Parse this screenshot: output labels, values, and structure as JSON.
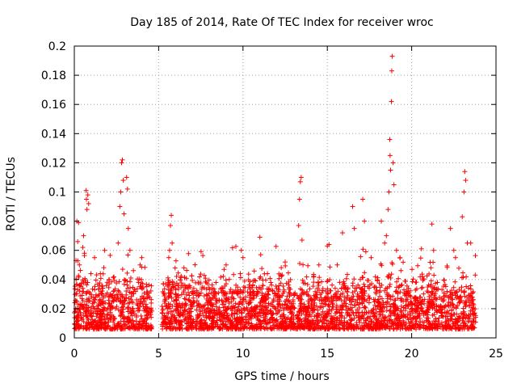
{
  "chart_data": {
    "type": "scatter",
    "title": "Day 185 of 2014, Rate Of TEC Index for receiver wroc",
    "xlabel": "GPS time / hours",
    "ylabel": "ROTI / TECUs",
    "xlim": [
      0,
      25
    ],
    "ylim": [
      0,
      0.2
    ],
    "grid": true,
    "marker": "+",
    "color": "#ff0000",
    "x_ticks": [
      0,
      5,
      10,
      15,
      20,
      25
    ],
    "x_tick_labels": [
      "0",
      "5",
      "10",
      "15",
      "20",
      "25"
    ],
    "y_ticks": [
      0,
      0.02,
      0.04,
      0.06,
      0.08,
      0.1,
      0.12,
      0.14,
      0.16,
      0.18,
      0.2
    ],
    "y_tick_labels": [
      "0",
      "0.02",
      "0.04",
      "0.06",
      "0.08",
      "0.1",
      "0.12",
      "0.14",
      "0.16",
      "0.18",
      "0.2"
    ],
    "data_gap_hours": [
      4.6,
      5.2
    ],
    "series": [
      {
        "name": "ROTI",
        "points": [
          [
            0.1,
            0.053
          ],
          [
            0.15,
            0.08
          ],
          [
            0.2,
            0.066
          ],
          [
            0.25,
            0.079
          ],
          [
            0.3,
            0.05
          ],
          [
            0.5,
            0.062
          ],
          [
            0.55,
            0.07
          ],
          [
            0.6,
            0.058
          ],
          [
            0.7,
            0.101
          ],
          [
            0.72,
            0.095
          ],
          [
            0.75,
            0.088
          ],
          [
            0.8,
            0.098
          ],
          [
            0.85,
            0.092
          ],
          [
            1.2,
            0.055
          ],
          [
            1.8,
            0.06
          ],
          [
            2.6,
            0.065
          ],
          [
            2.7,
            0.09
          ],
          [
            2.75,
            0.1
          ],
          [
            2.8,
            0.12
          ],
          [
            2.85,
            0.122
          ],
          [
            2.9,
            0.108
          ],
          [
            2.95,
            0.085
          ],
          [
            3.1,
            0.11
          ],
          [
            3.15,
            0.102
          ],
          [
            3.2,
            0.075
          ],
          [
            3.3,
            0.06
          ],
          [
            3.9,
            0.05
          ],
          [
            4.0,
            0.055
          ],
          [
            5.6,
            0.055
          ],
          [
            5.65,
            0.06
          ],
          [
            5.7,
            0.077
          ],
          [
            5.75,
            0.084
          ],
          [
            5.8,
            0.065
          ],
          [
            6.5,
            0.048
          ],
          [
            9.0,
            0.05
          ],
          [
            9.9,
            0.06
          ],
          [
            10.0,
            0.055
          ],
          [
            11.0,
            0.069
          ],
          [
            11.05,
            0.057
          ],
          [
            12.5,
            0.052
          ],
          [
            13.3,
            0.077
          ],
          [
            13.35,
            0.095
          ],
          [
            13.4,
            0.107
          ],
          [
            13.45,
            0.11
          ],
          [
            13.5,
            0.067
          ],
          [
            14.5,
            0.05
          ],
          [
            15.0,
            0.063
          ],
          [
            15.1,
            0.064
          ],
          [
            15.9,
            0.072
          ],
          [
            16.5,
            0.09
          ],
          [
            16.6,
            0.075
          ],
          [
            17.1,
            0.095
          ],
          [
            17.2,
            0.08
          ],
          [
            17.6,
            0.055
          ],
          [
            18.2,
            0.08
          ],
          [
            18.4,
            0.065
          ],
          [
            18.5,
            0.07
          ],
          [
            18.6,
            0.088
          ],
          [
            18.65,
            0.1
          ],
          [
            18.7,
            0.136
          ],
          [
            18.72,
            0.125
          ],
          [
            18.75,
            0.115
          ],
          [
            18.8,
            0.162
          ],
          [
            18.82,
            0.183
          ],
          [
            18.85,
            0.193
          ],
          [
            18.9,
            0.12
          ],
          [
            18.95,
            0.105
          ],
          [
            19.1,
            0.06
          ],
          [
            19.3,
            0.055
          ],
          [
            21.2,
            0.078
          ],
          [
            21.3,
            0.06
          ],
          [
            22.3,
            0.075
          ],
          [
            22.5,
            0.06
          ],
          [
            22.6,
            0.055
          ],
          [
            23.0,
            0.083
          ],
          [
            23.1,
            0.1
          ],
          [
            23.15,
            0.114
          ],
          [
            23.2,
            0.108
          ],
          [
            23.3,
            0.065
          ],
          [
            23.5,
            0.065
          ]
        ],
        "dense_band": {
          "x_ranges": [
            [
              0.0,
              4.6
            ],
            [
              5.2,
              23.8
            ]
          ],
          "typical_range": [
            0.006,
            0.045
          ]
        }
      }
    ]
  }
}
